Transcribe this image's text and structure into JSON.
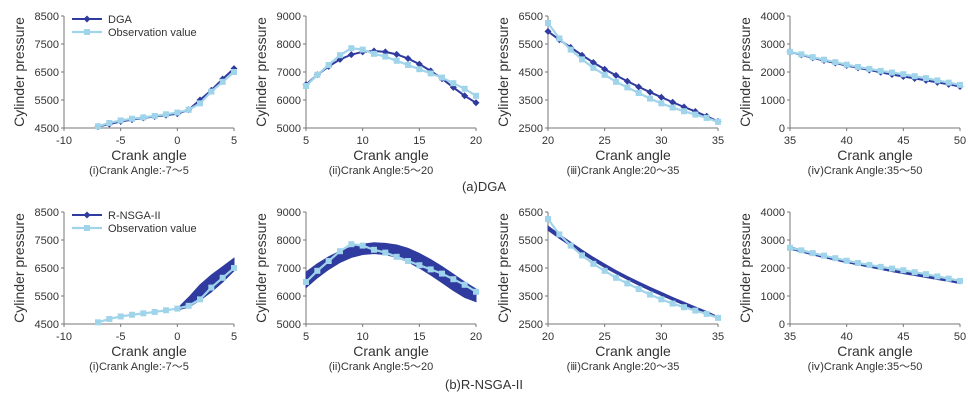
{
  "figure": {
    "row_captions": [
      "(a)DGA",
      "(b)R-NSGA-II"
    ],
    "series_colors": {
      "model": "#2f3b9e",
      "model_band": "#2f3b9e",
      "observation": "#9fd4ea"
    }
  },
  "chart_data": [
    {
      "type": "line",
      "row": 0,
      "col": 0,
      "caption": "(i)Crank Angle:-7～5",
      "xlabel": "Crank angle",
      "ylabel": "Cylinder pressure",
      "xlim": [
        -10,
        5
      ],
      "ylim": [
        4500,
        8500
      ],
      "xticks": [
        -10,
        -5,
        0,
        5
      ],
      "yticks": [
        4500,
        5500,
        6500,
        7500,
        8500
      ],
      "legend": {
        "placement": "top-left",
        "entries": [
          "DGA",
          "Observation value"
        ]
      },
      "series": [
        {
          "name": "DGA",
          "kind": "model",
          "x": [
            -7,
            -6,
            -5,
            -4,
            -3,
            -2,
            -1,
            0,
            1,
            2,
            3,
            4,
            5
          ],
          "y": [
            4550,
            4640,
            4730,
            4800,
            4860,
            4910,
            4960,
            5010,
            5150,
            5500,
            5850,
            6250,
            6620
          ]
        },
        {
          "name": "Observation value",
          "kind": "observation",
          "x": [
            -7,
            -6,
            -5,
            -4,
            -3,
            -2,
            -1,
            0,
            1,
            2,
            3,
            4,
            5
          ],
          "y": [
            4560,
            4680,
            4770,
            4830,
            4880,
            4930,
            4990,
            5050,
            5150,
            5380,
            5800,
            6150,
            6500
          ]
        }
      ]
    },
    {
      "type": "line",
      "row": 0,
      "col": 1,
      "caption": "(ii)Crank Angle:5～20",
      "xlabel": "Crank angle",
      "ylabel": "Cylinder pressure",
      "xlim": [
        5,
        20
      ],
      "ylim": [
        5000,
        9000
      ],
      "xticks": [
        5,
        10,
        15,
        20
      ],
      "yticks": [
        5000,
        6000,
        7000,
        8000,
        9000
      ],
      "series": [
        {
          "name": "DGA",
          "kind": "model",
          "x": [
            5,
            6,
            7,
            8,
            9,
            10,
            11,
            12,
            13,
            14,
            15,
            16,
            17,
            18,
            19,
            20
          ],
          "y": [
            6550,
            6900,
            7200,
            7450,
            7620,
            7720,
            7750,
            7720,
            7630,
            7480,
            7280,
            7040,
            6760,
            6450,
            6150,
            5900
          ]
        },
        {
          "name": "Observation value",
          "kind": "observation",
          "x": [
            5,
            6,
            7,
            8,
            9,
            10,
            11,
            12,
            13,
            14,
            15,
            16,
            17,
            18,
            19,
            20
          ],
          "y": [
            6500,
            6900,
            7250,
            7600,
            7850,
            7800,
            7650,
            7550,
            7400,
            7250,
            7100,
            6950,
            6800,
            6600,
            6400,
            6150
          ]
        }
      ]
    },
    {
      "type": "line",
      "row": 0,
      "col": 2,
      "caption": "(ⅲ)Crank Angle:20～35",
      "xlabel": "Crank angle",
      "ylabel": "Cylinder pressure",
      "xlim": [
        20,
        35
      ],
      "ylim": [
        2500,
        6500
      ],
      "xticks": [
        20,
        25,
        30,
        35
      ],
      "yticks": [
        2500,
        3500,
        4500,
        5500,
        6500
      ],
      "series": [
        {
          "name": "DGA",
          "kind": "model",
          "x": [
            20,
            21,
            22,
            23,
            24,
            25,
            26,
            27,
            28,
            29,
            30,
            31,
            32,
            33,
            34,
            35
          ],
          "y": [
            5950,
            5650,
            5380,
            5100,
            4840,
            4600,
            4380,
            4170,
            3970,
            3780,
            3600,
            3420,
            3250,
            3090,
            2920,
            2730
          ]
        },
        {
          "name": "Observation value",
          "kind": "observation",
          "x": [
            20,
            21,
            22,
            23,
            24,
            25,
            26,
            27,
            28,
            29,
            30,
            31,
            32,
            33,
            34,
            35
          ],
          "y": [
            6250,
            5700,
            5300,
            4950,
            4650,
            4400,
            4150,
            3950,
            3750,
            3550,
            3380,
            3230,
            3100,
            2980,
            2860,
            2720
          ]
        }
      ]
    },
    {
      "type": "line",
      "row": 0,
      "col": 3,
      "caption": "(ⅳ)Crank Angle:35～50",
      "xlabel": "Crank angle",
      "ylabel": "Cylinder pressure",
      "xlim": [
        35,
        50
      ],
      "ylim": [
        0,
        4000
      ],
      "xticks": [
        35,
        40,
        45,
        50
      ],
      "yticks": [
        0,
        1000,
        2000,
        3000,
        4000
      ],
      "series": [
        {
          "name": "DGA",
          "kind": "model",
          "x": [
            35,
            36,
            37,
            38,
            39,
            40,
            41,
            42,
            43,
            44,
            45,
            46,
            47,
            48,
            49,
            50
          ],
          "y": [
            2720,
            2610,
            2510,
            2410,
            2320,
            2230,
            2150,
            2070,
            1990,
            1910,
            1840,
            1770,
            1700,
            1630,
            1560,
            1480
          ]
        },
        {
          "name": "Observation value",
          "kind": "observation",
          "x": [
            35,
            36,
            37,
            38,
            39,
            40,
            41,
            42,
            43,
            44,
            45,
            46,
            47,
            48,
            49,
            50
          ],
          "y": [
            2720,
            2630,
            2530,
            2440,
            2350,
            2260,
            2180,
            2110,
            2040,
            1980,
            1920,
            1850,
            1780,
            1700,
            1620,
            1540
          ]
        }
      ]
    },
    {
      "type": "line",
      "row": 1,
      "col": 0,
      "caption": "(i)Crank Angle:-7～5",
      "xlabel": "Crank angle",
      "ylabel": "Cylinder pressure",
      "xlim": [
        -10,
        5
      ],
      "ylim": [
        4500,
        8500
      ],
      "xticks": [
        -10,
        -5,
        0,
        5
      ],
      "yticks": [
        4500,
        5500,
        6500,
        7500,
        8500
      ],
      "legend": {
        "placement": "top-left",
        "entries": [
          "R-NSGA-II",
          "Observation value"
        ]
      },
      "series": [
        {
          "name": "R-NSGA-II",
          "kind": "model_band",
          "x": [
            0,
            1,
            2,
            3,
            4,
            5
          ],
          "y_low": [
            5000,
            5100,
            5350,
            5650,
            6000,
            6400
          ],
          "y_high": [
            5050,
            5450,
            5900,
            6250,
            6550,
            6850
          ]
        },
        {
          "name": "Observation value",
          "kind": "observation",
          "x": [
            -7,
            -6,
            -5,
            -4,
            -3,
            -2,
            -1,
            0,
            1,
            2,
            3,
            4,
            5
          ],
          "y": [
            4560,
            4680,
            4770,
            4830,
            4880,
            4930,
            4990,
            5050,
            5150,
            5380,
            5800,
            6150,
            6500
          ]
        }
      ]
    },
    {
      "type": "line",
      "row": 1,
      "col": 1,
      "caption": "(ii)Crank Angle:5～20",
      "xlabel": "Crank angle",
      "ylabel": "Cylinder pressure",
      "xlim": [
        5,
        20
      ],
      "ylim": [
        5000,
        9000
      ],
      "xticks": [
        5,
        10,
        15,
        20
      ],
      "yticks": [
        5000,
        6000,
        7000,
        8000,
        9000
      ],
      "series": [
        {
          "name": "R-NSGA-II",
          "kind": "model_band",
          "x": [
            5,
            6,
            7,
            8,
            9,
            10,
            11,
            12,
            13,
            14,
            15,
            16,
            17,
            18,
            19,
            20
          ],
          "y_low": [
            6300,
            6650,
            6950,
            7200,
            7380,
            7480,
            7520,
            7480,
            7380,
            7220,
            7000,
            6750,
            6480,
            6200,
            5950,
            5800
          ],
          "y_high": [
            6850,
            7150,
            7400,
            7600,
            7750,
            7850,
            7900,
            7880,
            7820,
            7700,
            7520,
            7300,
            7050,
            6780,
            6500,
            6250
          ]
        },
        {
          "name": "Observation value",
          "kind": "observation",
          "x": [
            5,
            6,
            7,
            8,
            9,
            10,
            11,
            12,
            13,
            14,
            15,
            16,
            17,
            18,
            19,
            20
          ],
          "y": [
            6500,
            6900,
            7250,
            7600,
            7850,
            7800,
            7650,
            7550,
            7400,
            7250,
            7100,
            6950,
            6800,
            6600,
            6400,
            6150
          ]
        }
      ]
    },
    {
      "type": "line",
      "row": 1,
      "col": 2,
      "caption": "(ⅲ)Crank Angle:20～35",
      "xlabel": "Crank angle",
      "ylabel": "Cylinder pressure",
      "xlim": [
        20,
        35
      ],
      "ylim": [
        2500,
        6500
      ],
      "xticks": [
        20,
        25,
        30,
        35
      ],
      "yticks": [
        2500,
        3500,
        4500,
        5500,
        6500
      ],
      "series": [
        {
          "name": "R-NSGA-II",
          "kind": "model_band",
          "x": [
            20,
            21,
            22,
            23,
            24,
            25,
            26,
            27,
            28,
            29,
            30,
            31,
            32,
            33,
            34,
            35
          ],
          "y_low": [
            5850,
            5560,
            5290,
            5020,
            4760,
            4520,
            4300,
            4090,
            3890,
            3700,
            3520,
            3350,
            3180,
            3020,
            2860,
            2700
          ],
          "y_high": [
            6000,
            5700,
            5420,
            5140,
            4880,
            4640,
            4410,
            4200,
            4000,
            3810,
            3630,
            3450,
            3280,
            3110,
            2950,
            2760
          ]
        },
        {
          "name": "Observation value",
          "kind": "observation",
          "x": [
            20,
            21,
            22,
            23,
            24,
            25,
            26,
            27,
            28,
            29,
            30,
            31,
            32,
            33,
            34,
            35
          ],
          "y": [
            6250,
            5700,
            5300,
            4950,
            4650,
            4400,
            4150,
            3950,
            3750,
            3550,
            3380,
            3230,
            3100,
            2980,
            2860,
            2720
          ]
        }
      ]
    },
    {
      "type": "line",
      "row": 1,
      "col": 3,
      "caption": "(ⅳ)Crank Angle:35～50",
      "xlabel": "Crank angle",
      "ylabel": "Cylinder pressure",
      "xlim": [
        35,
        50
      ],
      "ylim": [
        0,
        4000
      ],
      "xticks": [
        35,
        40,
        45,
        50
      ],
      "yticks": [
        0,
        1000,
        2000,
        3000,
        4000
      ],
      "series": [
        {
          "name": "R-NSGA-II",
          "kind": "model_band",
          "x": [
            35,
            36,
            37,
            38,
            39,
            40,
            41,
            42,
            43,
            44,
            45,
            46,
            47,
            48,
            49,
            50
          ],
          "y_low": [
            2680,
            2570,
            2470,
            2370,
            2280,
            2190,
            2110,
            2030,
            1950,
            1870,
            1800,
            1730,
            1660,
            1590,
            1520,
            1440
          ],
          "y_high": [
            2760,
            2650,
            2550,
            2450,
            2360,
            2270,
            2190,
            2110,
            2030,
            1950,
            1880,
            1810,
            1740,
            1670,
            1600,
            1520
          ]
        },
        {
          "name": "Observation value",
          "kind": "observation",
          "x": [
            35,
            36,
            37,
            38,
            39,
            40,
            41,
            42,
            43,
            44,
            45,
            46,
            47,
            48,
            49,
            50
          ],
          "y": [
            2720,
            2630,
            2530,
            2440,
            2350,
            2260,
            2180,
            2110,
            2040,
            1980,
            1920,
            1850,
            1780,
            1700,
            1620,
            1540
          ]
        }
      ]
    }
  ]
}
